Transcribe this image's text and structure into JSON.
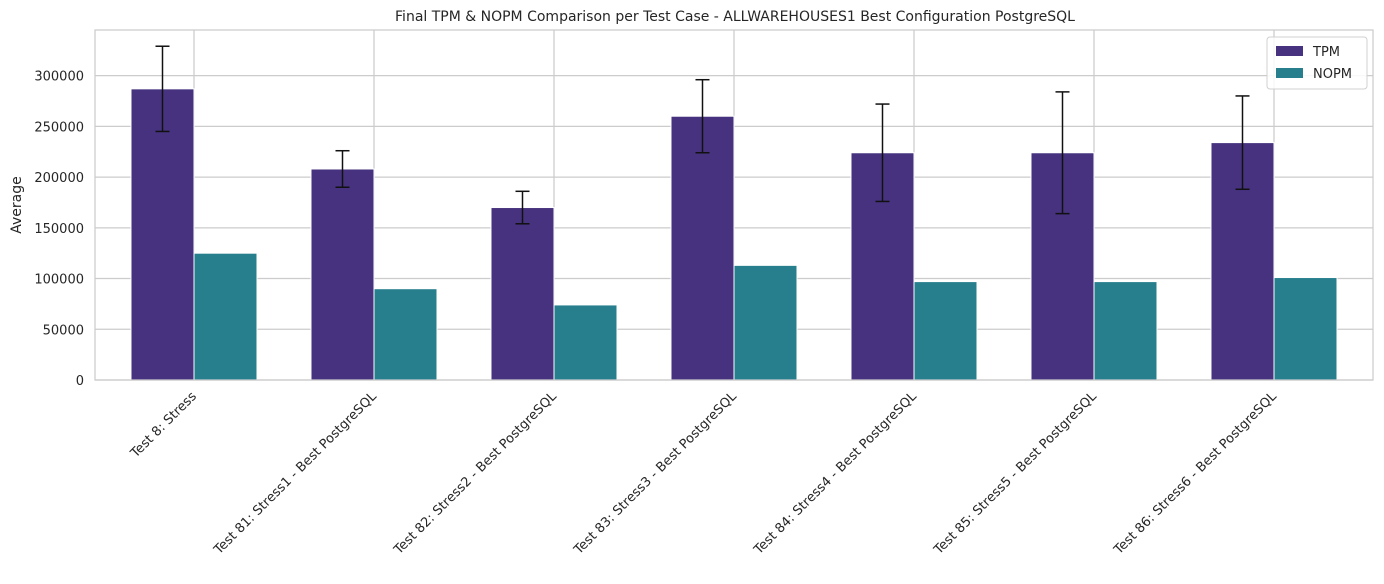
{
  "chart_data": {
    "type": "bar",
    "title": "Final TPM & NOPM Comparison per Test Case - ALLWAREHOUSES1 Best Configuration PostgreSQL",
    "xlabel": "",
    "ylabel": "Average",
    "ylim": [
      0,
      345000
    ],
    "yticks": [
      0,
      50000,
      100000,
      150000,
      200000,
      250000,
      300000
    ],
    "grid": true,
    "legend_position": "top-right",
    "categories": [
      "Test 8: Stress",
      "Test 81: Stress1 - Best PostgreSQL",
      "Test 82: Stress2 - Best PostgreSQL",
      "Test 83: Stress3 - Best PostgreSQL",
      "Test 84: Stress4 - Best PostgreSQL",
      "Test 85: Stress5 - Best PostgreSQL",
      "Test 86: Stress6 - Best PostgreSQL"
    ],
    "series": [
      {
        "name": "TPM",
        "color": "#46327e",
        "values": [
          287000,
          208000,
          170000,
          260000,
          224000,
          224000,
          234000
        ],
        "error": [
          42000,
          18000,
          16000,
          36000,
          48000,
          60000,
          46000
        ]
      },
      {
        "name": "NOPM",
        "color": "#277f8e",
        "values": [
          125000,
          90000,
          74000,
          113000,
          97000,
          97000,
          101000
        ]
      }
    ]
  }
}
